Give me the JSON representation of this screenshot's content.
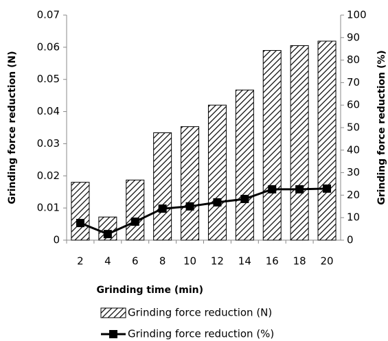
{
  "chart_data": {
    "type": "bar",
    "x_label": "Grinding time (min)",
    "y_label": "Grinding force reduction (N)",
    "y2_label": "Grinding force reduction (%)",
    "categories": [
      2,
      4,
      6,
      8,
      10,
      12,
      14,
      16,
      18,
      20
    ],
    "series": [
      {
        "name": "Grinding force reduction (N)",
        "type": "bar",
        "color": "#000000",
        "values": [
          0.018,
          0.0072,
          0.0187,
          0.0334,
          0.0353,
          0.042,
          0.0467,
          0.059,
          0.0605,
          0.0619
        ]
      },
      {
        "name": "Grinding force reduction (%)",
        "type": "line",
        "axis": "y2",
        "color": "#000000",
        "values": [
          7.6,
          2.7,
          8.2,
          14,
          15,
          16.8,
          18.3,
          22.6,
          22.6,
          22.9
        ]
      }
    ],
    "ylim": [
      0,
      0.07
    ],
    "yticks": [
      0,
      0.01,
      0.02,
      0.03,
      0.04,
      0.05,
      0.06,
      0.07
    ],
    "y2lim": [
      0,
      100
    ],
    "y2ticks": [
      0,
      10,
      20,
      30,
      40,
      50,
      60,
      70,
      80,
      90,
      100
    ],
    "grid": false,
    "legend": "bottom"
  }
}
